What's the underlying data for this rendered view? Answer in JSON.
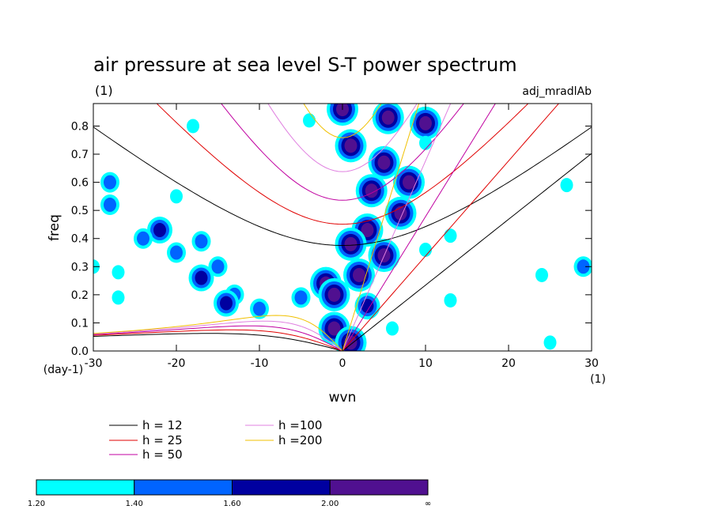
{
  "chart_data": {
    "type": "heatmap",
    "title": "air pressure at sea level S-T power spectrum",
    "subtitle_left": "(1)",
    "subtitle_right": "adj_mradlAb",
    "xlabel": "wvn",
    "ylabel": "freq",
    "x_unit": "(1)",
    "y_unit": "(day-1)",
    "xlim": [
      -30,
      30
    ],
    "ylim": [
      0,
      0.88
    ],
    "x_ticks": [
      -30,
      -20,
      -10,
      0,
      10,
      20,
      30
    ],
    "x_tick_labels": [
      "-30",
      "-20",
      "-10",
      "0",
      "10",
      "20",
      "30"
    ],
    "y_ticks": [
      0,
      0.1,
      0.2,
      0.3,
      0.4,
      0.5,
      0.6,
      0.7,
      0.8
    ],
    "y_tick_labels": [
      "0.0",
      "0.1",
      "0.2",
      "0.3",
      "0.4",
      "0.5",
      "0.6",
      "0.7",
      "0.8"
    ],
    "grid": false,
    "dispersion_curves": [
      {
        "label": "h = 12",
        "h": 12,
        "color": "#000000"
      },
      {
        "label": "h = 25",
        "h": 25,
        "color": "#e00000"
      },
      {
        "label": "h = 50",
        "h": 50,
        "color": "#c000a0"
      },
      {
        "label": "h =100",
        "h": 100,
        "color": "#e080e0"
      },
      {
        "label": "h =200",
        "h": 200,
        "color": "#f0c000"
      }
    ],
    "colorbar": {
      "levels": [
        "1.20",
        "1.40",
        "1.60",
        "2.00",
        "∞"
      ],
      "colors": [
        "#00ffff",
        "#0064ff",
        "#0000a0",
        "#501090"
      ]
    },
    "blobs": [
      {
        "x": 0,
        "y": 0.86,
        "level": 3
      },
      {
        "x": 1,
        "y": 0.73,
        "level": 3
      },
      {
        "x": 5.5,
        "y": 0.83,
        "level": 3
      },
      {
        "x": 10,
        "y": 0.81,
        "level": 3
      },
      {
        "x": 5,
        "y": 0.67,
        "level": 3
      },
      {
        "x": 8,
        "y": 0.6,
        "level": 3
      },
      {
        "x": 3.5,
        "y": 0.57,
        "level": 3
      },
      {
        "x": 7,
        "y": 0.49,
        "level": 3
      },
      {
        "x": 3,
        "y": 0.43,
        "level": 3
      },
      {
        "x": 1,
        "y": 0.38,
        "level": 3
      },
      {
        "x": 5,
        "y": 0.34,
        "level": 3
      },
      {
        "x": 2,
        "y": 0.27,
        "level": 3
      },
      {
        "x": -2,
        "y": 0.24,
        "level": 3
      },
      {
        "x": -1,
        "y": 0.2,
        "level": 3
      },
      {
        "x": 3,
        "y": 0.16,
        "level": 2
      },
      {
        "x": -1,
        "y": 0.08,
        "level": 3
      },
      {
        "x": 1,
        "y": 0.03,
        "level": 3
      },
      {
        "x": -28,
        "y": 0.6,
        "level": 1
      },
      {
        "x": -28,
        "y": 0.52,
        "level": 1
      },
      {
        "x": -22,
        "y": 0.43,
        "level": 2
      },
      {
        "x": -24,
        "y": 0.4,
        "level": 1
      },
      {
        "x": -17,
        "y": 0.39,
        "level": 1
      },
      {
        "x": -20,
        "y": 0.35,
        "level": 1
      },
      {
        "x": -15,
        "y": 0.3,
        "level": 1
      },
      {
        "x": -17,
        "y": 0.26,
        "level": 2
      },
      {
        "x": -13,
        "y": 0.2,
        "level": 1
      },
      {
        "x": -14,
        "y": 0.17,
        "level": 2
      },
      {
        "x": -10,
        "y": 0.15,
        "level": 1
      },
      {
        "x": -5,
        "y": 0.19,
        "level": 1
      },
      {
        "x": -30,
        "y": 0.3,
        "level": 0
      },
      {
        "x": -27,
        "y": 0.28,
        "level": 0
      },
      {
        "x": -20,
        "y": 0.55,
        "level": 0
      },
      {
        "x": -18,
        "y": 0.8,
        "level": 0
      },
      {
        "x": -4,
        "y": 0.82,
        "level": 0
      },
      {
        "x": 10,
        "y": 0.74,
        "level": 0
      },
      {
        "x": 13,
        "y": 0.41,
        "level": 0
      },
      {
        "x": 29,
        "y": 0.3,
        "level": 1
      },
      {
        "x": 24,
        "y": 0.27,
        "level": 0
      },
      {
        "x": 10,
        "y": 0.36,
        "level": 0
      },
      {
        "x": 6,
        "y": 0.08,
        "level": 0
      },
      {
        "x": 25,
        "y": 0.03,
        "level": 0
      },
      {
        "x": 27,
        "y": 0.59,
        "level": 0
      },
      {
        "x": -27,
        "y": 0.19,
        "level": 0
      },
      {
        "x": 13,
        "y": 0.18,
        "level": 0
      }
    ]
  }
}
